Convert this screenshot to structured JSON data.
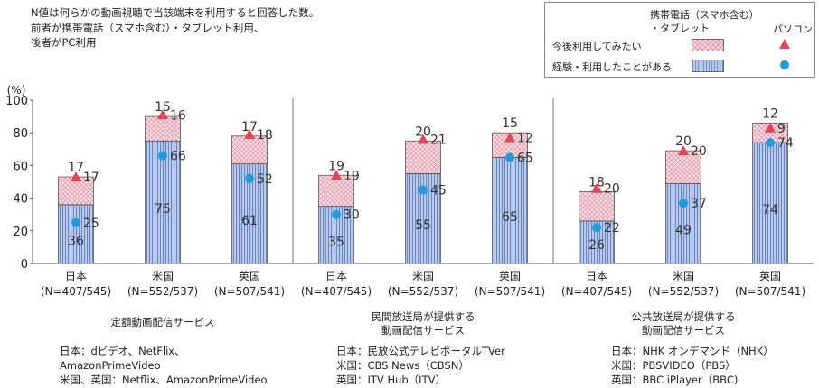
{
  "note": "N値は何らかの動画視聴で当該端末を利用すると回答した数。\n前者が携帯電話（スマホ含む）・タブレット利用、\n後者がPC利用",
  "legend": {
    "header": "携帯電話（スマホ含む）\n・タブレット",
    "pc_label": "パソコン",
    "future_label": "今後利用してみたい",
    "experience_label": "経験・利用したことがある",
    "colors": {
      "future_fill": "#fbe3e8",
      "experience_fill": "#b7c9ea",
      "triangle": "#e8424e",
      "dot": "#1a9ee0"
    }
  },
  "chart_data": {
    "type": "bar",
    "stacked": true,
    "ylabel": "(%)",
    "ylim": [
      0,
      100
    ],
    "yticks": [
      0,
      20,
      40,
      60,
      80,
      100
    ],
    "groups": [
      {
        "title": "定額動画配信サービス",
        "footer": "日本：dビデオ、NetFlix、\nAmazonPrimeVideo\n米国、英国：Netflix、AmazonPrimeVideo",
        "bars": [
          {
            "country": "日本",
            "n": "(N=407/545)",
            "experience": 36,
            "future": 17,
            "pc_experience": 25,
            "pc_future": 17
          },
          {
            "country": "米国",
            "n": "(N=552/537)",
            "experience": 75,
            "future": 15,
            "pc_experience": 66,
            "pc_future": 16
          },
          {
            "country": "英国",
            "n": "(N=507/541)",
            "experience": 61,
            "future": 17,
            "pc_experience": 52,
            "pc_future": 18
          }
        ]
      },
      {
        "title": "民間放送局が提供する\n動画配信サービス",
        "footer": "日本：民放公式テレビポータルTVer\n米国：CBS News（CBSN）\n英国：ITV Hub（ITV）",
        "bars": [
          {
            "country": "日本",
            "n": "(N=407/545)",
            "experience": 35,
            "future": 19,
            "pc_experience": 30,
            "pc_future": 19
          },
          {
            "country": "米国",
            "n": "(N=552/537)",
            "experience": 55,
            "future": 20,
            "pc_experience": 45,
            "pc_future": 21
          },
          {
            "country": "英国",
            "n": "(N=507/541)",
            "experience": 65,
            "future": 15,
            "pc_experience": 65,
            "pc_future": 12
          }
        ]
      },
      {
        "title": "公共放送局が提供する\n動画配信サービス",
        "footer": "日本：NHK オンデマンド（NHK）\n米国：PBSVIDEO（PBS）\n英国：BBC iPlayer（BBC)",
        "bars": [
          {
            "country": "日本",
            "n": "(N=407/545)",
            "experience": 26,
            "future": 18,
            "pc_experience": 22,
            "pc_future": 20
          },
          {
            "country": "米国",
            "n": "(N=552/537)",
            "experience": 49,
            "future": 20,
            "pc_experience": 37,
            "pc_future": 20
          },
          {
            "country": "英国",
            "n": "(N=507/541)",
            "experience": 74,
            "future": 12,
            "pc_experience": 74,
            "pc_future": 9
          }
        ]
      }
    ]
  }
}
